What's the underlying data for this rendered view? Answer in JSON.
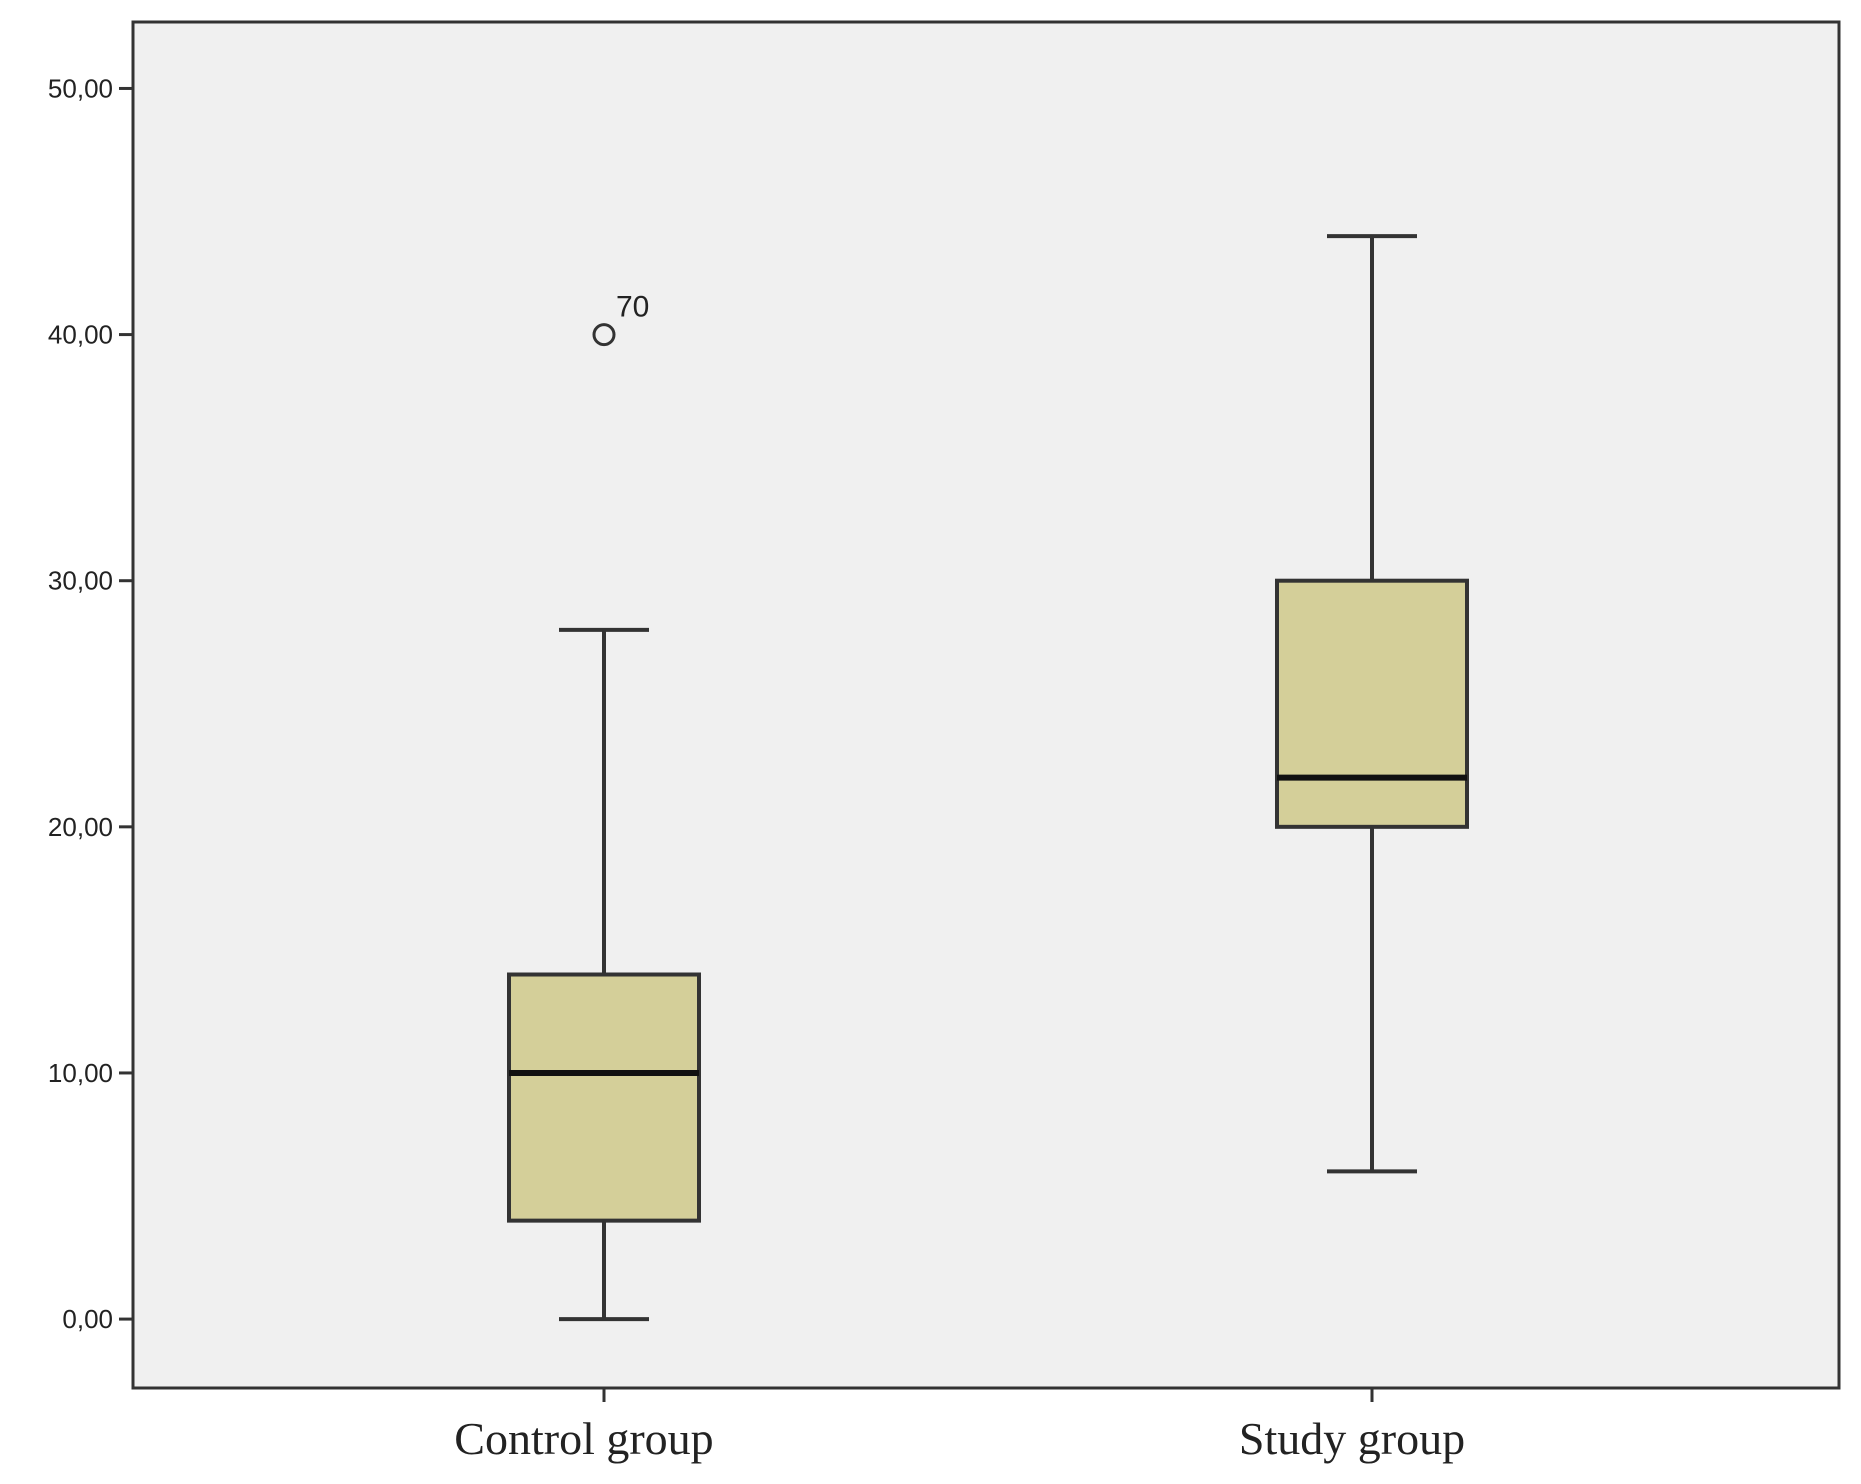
{
  "chart_data": {
    "type": "box",
    "title": "",
    "xlabel": "",
    "ylabel": "",
    "ylim": [
      -2.8,
      52.7
    ],
    "y_ticks": [
      0,
      10,
      20,
      30,
      40,
      50
    ],
    "y_tick_labels": [
      "0,00",
      "10,00",
      "20,00",
      "30,00",
      "40,00",
      "50,00"
    ],
    "grid": false,
    "categories": [
      "Control group",
      "Study group"
    ],
    "boxes": [
      {
        "category": "Control group",
        "whisker_low": 0,
        "q1": 4,
        "median": 10,
        "q3": 14,
        "whisker_high": 28,
        "outliers": [
          {
            "value": 40,
            "label": "70"
          }
        ]
      },
      {
        "category": "Study group",
        "whisker_low": 6,
        "q1": 20,
        "median": 22,
        "q3": 30,
        "whisker_high": 44,
        "outliers": []
      }
    ],
    "colors": {
      "plot_background": "#f0f0f0",
      "box_fill": "#d4cf99",
      "stroke": "#333333",
      "median": "#111111"
    }
  }
}
